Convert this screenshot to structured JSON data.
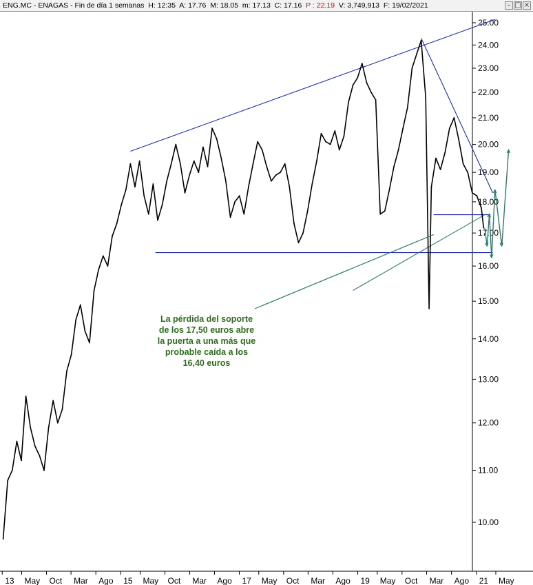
{
  "header": {
    "symbol": "ENG.MC",
    "name": "ENAGAS",
    "period": "Fin de día 1 semanas",
    "hour": "H: 12:35",
    "open": "A: 17.76",
    "high": "M: 18.05",
    "low": "m: 17.13",
    "close": "C: 17.16",
    "change": "P : 22.19",
    "volume": "V: 3,749,913",
    "date": "F: 19/02/2021"
  },
  "window_buttons": [
    "minimize",
    "restore",
    "close"
  ],
  "colors": {
    "price": "#000000",
    "trendlines": "#1f2bb0",
    "support": "#1f2bb0",
    "projection": "#2f7a70",
    "annotation": "#2e6f1e"
  },
  "chart_data": {
    "type": "line",
    "title": "",
    "xlabel": "",
    "ylabel": "",
    "y_scale": "log",
    "ylim": [
      9.6,
      25.5
    ],
    "yticks": [
      "10.00",
      "11.00",
      "12.00",
      "13.00",
      "14.00",
      "15.00",
      "16.00",
      "17.00",
      "18.00",
      "19.00",
      "20.00",
      "21.00",
      "22.00",
      "23.00",
      "24.00",
      "25.00"
    ],
    "x_tick_labels": [
      "13",
      "May",
      "Oct",
      "Mar",
      "Ago",
      "15",
      "May",
      "Oct",
      "Mar",
      "Ago",
      "17",
      "May",
      "Oct",
      "Mar",
      "Ago",
      "19",
      "May",
      "Oct",
      "Mar",
      "Ago",
      "21",
      "May"
    ],
    "series": [
      {
        "points": [
          [
            "2013-01-07",
            9.7
          ],
          [
            "2013-02-04",
            10.8
          ],
          [
            "2013-03-04",
            11.0
          ],
          [
            "2013-04-01",
            11.6
          ],
          [
            "2013-04-29",
            11.2
          ],
          [
            "2013-05-27",
            12.6
          ],
          [
            "2013-06-24",
            11.9
          ],
          [
            "2013-07-22",
            11.5
          ],
          [
            "2013-08-19",
            11.3
          ],
          [
            "2013-09-16",
            11.0
          ],
          [
            "2013-10-14",
            11.9
          ],
          [
            "2013-11-11",
            12.5
          ],
          [
            "2013-12-09",
            12.0
          ],
          [
            "2014-01-06",
            12.3
          ],
          [
            "2014-02-03",
            13.2
          ],
          [
            "2014-03-03",
            13.6
          ],
          [
            "2014-03-31",
            14.5
          ],
          [
            "2014-04-28",
            14.9
          ],
          [
            "2014-05-26",
            14.2
          ],
          [
            "2014-06-23",
            13.9
          ],
          [
            "2014-07-21",
            15.3
          ],
          [
            "2014-08-18",
            15.9
          ],
          [
            "2014-09-15",
            16.3
          ],
          [
            "2014-10-13",
            16.0
          ],
          [
            "2014-11-10",
            16.9
          ],
          [
            "2014-12-08",
            17.3
          ],
          [
            "2015-01-05",
            17.9
          ],
          [
            "2015-02-02",
            18.4
          ],
          [
            "2015-03-02",
            19.3
          ],
          [
            "2015-03-30",
            18.5
          ],
          [
            "2015-04-27",
            19.4
          ],
          [
            "2015-05-25",
            18.2
          ],
          [
            "2015-06-22",
            17.6
          ],
          [
            "2015-07-20",
            18.6
          ],
          [
            "2015-08-17",
            17.4
          ],
          [
            "2015-09-14",
            17.9
          ],
          [
            "2015-10-12",
            18.7
          ],
          [
            "2015-11-09",
            19.3
          ],
          [
            "2015-12-07",
            20.0
          ],
          [
            "2016-01-04",
            19.3
          ],
          [
            "2016-02-01",
            18.3
          ],
          [
            "2016-02-29",
            18.9
          ],
          [
            "2016-03-28",
            19.4
          ],
          [
            "2016-04-25",
            19.0
          ],
          [
            "2016-05-23",
            19.9
          ],
          [
            "2016-06-20",
            19.2
          ],
          [
            "2016-07-18",
            20.6
          ],
          [
            "2016-08-15",
            20.2
          ],
          [
            "2016-09-12",
            19.5
          ],
          [
            "2016-10-10",
            18.7
          ],
          [
            "2016-11-07",
            17.5
          ],
          [
            "2016-12-05",
            18.0
          ],
          [
            "2017-01-02",
            18.2
          ],
          [
            "2017-01-30",
            17.6
          ],
          [
            "2017-02-27",
            18.5
          ],
          [
            "2017-03-27",
            19.3
          ],
          [
            "2017-04-24",
            20.1
          ],
          [
            "2017-05-22",
            19.8
          ],
          [
            "2017-06-19",
            19.2
          ],
          [
            "2017-07-17",
            18.7
          ],
          [
            "2017-08-14",
            18.9
          ],
          [
            "2017-09-11",
            19.0
          ],
          [
            "2017-10-09",
            19.3
          ],
          [
            "2017-11-06",
            18.5
          ],
          [
            "2017-12-04",
            17.3
          ],
          [
            "2018-01-01",
            16.7
          ],
          [
            "2018-01-29",
            17.0
          ],
          [
            "2018-02-26",
            17.7
          ],
          [
            "2018-03-26",
            18.6
          ],
          [
            "2018-04-23",
            19.4
          ],
          [
            "2018-05-21",
            20.4
          ],
          [
            "2018-06-18",
            20.1
          ],
          [
            "2018-07-16",
            20.0
          ],
          [
            "2018-08-13",
            20.5
          ],
          [
            "2018-09-10",
            19.8
          ],
          [
            "2018-10-08",
            20.3
          ],
          [
            "2018-11-05",
            21.6
          ],
          [
            "2018-12-03",
            22.3
          ],
          [
            "2018-12-31",
            22.6
          ],
          [
            "2019-01-28",
            23.2
          ],
          [
            "2019-02-25",
            22.4
          ],
          [
            "2019-03-25",
            22.0
          ],
          [
            "2019-04-22",
            21.7
          ],
          [
            "2019-05-20",
            17.6
          ],
          [
            "2019-06-17",
            17.7
          ],
          [
            "2019-07-15",
            18.4
          ],
          [
            "2019-08-12",
            19.2
          ],
          [
            "2019-09-09",
            19.8
          ],
          [
            "2019-10-07",
            20.6
          ],
          [
            "2019-11-04",
            21.4
          ],
          [
            "2019-12-02",
            23.0
          ],
          [
            "2019-12-30",
            23.6
          ],
          [
            "2020-01-27",
            24.2
          ],
          [
            "2020-02-24",
            21.8
          ],
          [
            "2020-03-16",
            14.8
          ],
          [
            "2020-03-30",
            18.5
          ],
          [
            "2020-04-27",
            19.5
          ],
          [
            "2020-05-25",
            19.1
          ],
          [
            "2020-06-22",
            19.7
          ],
          [
            "2020-07-20",
            20.6
          ],
          [
            "2020-08-17",
            21.0
          ],
          [
            "2020-09-14",
            20.2
          ],
          [
            "2020-10-12",
            19.3
          ],
          [
            "2020-11-09",
            19.0
          ],
          [
            "2020-12-07",
            18.3
          ],
          [
            "2021-01-04",
            18.2
          ],
          [
            "2021-02-01",
            17.8
          ],
          [
            "2021-02-15",
            17.16
          ]
        ]
      }
    ],
    "lines": [
      {
        "name": "upper-trendline",
        "from": [
          "2015-03-02",
          19.75
        ],
        "to": [
          "2021-04-26",
          25.15
        ]
      },
      {
        "name": "descending-trendline",
        "from": [
          "2020-01-27",
          24.3
        ],
        "to": [
          "2021-04-12",
          18.3
        ]
      },
      {
        "name": "support-16-40",
        "from": [
          "2015-08-03",
          16.4
        ],
        "to": [
          "2021-04-12",
          16.4
        ]
      },
      {
        "name": "support-17-50",
        "from": [
          "2020-04-13",
          17.58
        ],
        "to": [
          "2021-03-29",
          17.58
        ]
      },
      {
        "name": "rising-support",
        "from": [
          "2018-12-03",
          15.3
        ],
        "to": [
          "2021-03-01",
          17.6
        ]
      }
    ],
    "projection": [
      [
        "2021-02-22",
        17.16
      ],
      [
        "2021-03-08",
        16.6
      ],
      [
        "2021-03-22",
        17.6
      ],
      [
        "2021-04-05",
        16.25
      ],
      [
        "2021-04-26",
        18.4
      ],
      [
        "2021-06-07",
        16.6
      ],
      [
        "2021-07-19",
        19.8
      ]
    ],
    "annotation": {
      "lines": [
        "La pérdida del soporte",
        "de los 17,50 euros abre",
        "la puerta a una más que",
        "probable caída a los",
        "16,40 euros"
      ],
      "pointer_to": [
        "2020-04-13",
        16.95
      ]
    }
  }
}
